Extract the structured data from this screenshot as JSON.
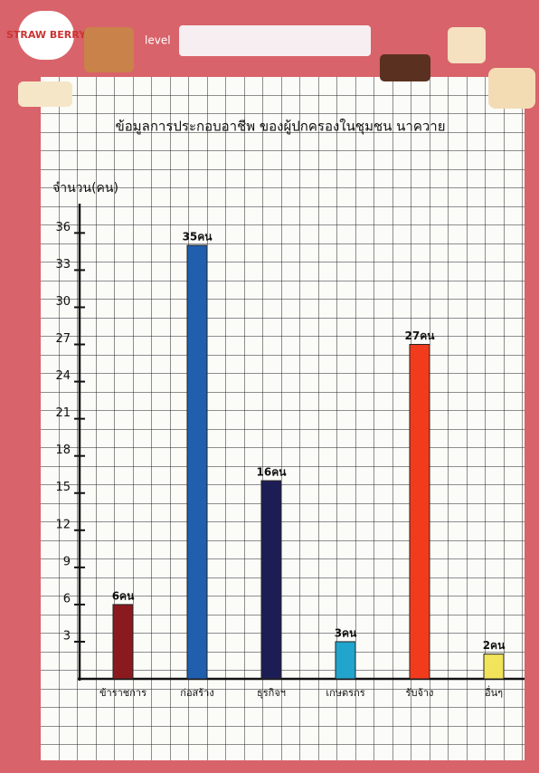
{
  "decor": {
    "brand": "STRAW BERRY",
    "level": "level"
  },
  "chart_data": {
    "type": "bar",
    "title": "ข้อมูลการประกอบอาชีพ ของผู้ปกครองในชุมชน นาควาย",
    "y_label": "จำนวน(คน)",
    "categories": [
      "ข้าราชการ",
      "ก่อสร้าง",
      "ธุรกิจฯ",
      "เกษตรกร",
      "รับจ้าง",
      "อื่นๆ"
    ],
    "values": [
      6,
      35,
      16,
      3,
      27,
      2
    ],
    "value_labels": [
      "6คน",
      "35คน",
      "16คน",
      "3คน",
      "27คน",
      "2คน"
    ],
    "colors": [
      "#8b1a1e",
      "#1f5fae",
      "#1d1d55",
      "#21a5cc",
      "#f23b1c",
      "#f2e45a"
    ],
    "ylim": [
      0,
      38
    ],
    "yticks": [
      3,
      6,
      9,
      12,
      15,
      18,
      21,
      24,
      27,
      30,
      33,
      36
    ]
  }
}
